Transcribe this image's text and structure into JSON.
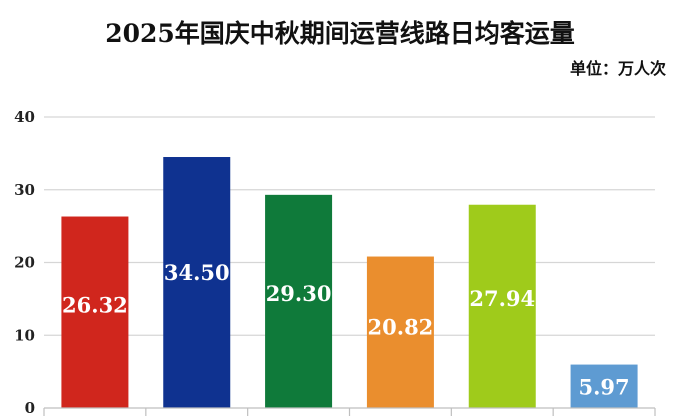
{
  "chart_data": {
    "type": "bar",
    "title": "2025年国庆中秋期间运营线路日均客运量",
    "unit_label": "单位：万人次",
    "xlabel": "",
    "ylabel": "",
    "ylim": [
      0,
      40
    ],
    "yticks": [
      0,
      10,
      20,
      30,
      40
    ],
    "grid": true,
    "categories": [
      "",
      "",
      "",
      "",
      "",
      ""
    ],
    "values": [
      26.32,
      34.5,
      29.3,
      20.82,
      27.94,
      5.97
    ],
    "labels": [
      "26.32",
      "34.50",
      "29.30",
      "20.82",
      "27.94",
      "5.97"
    ],
    "colors": [
      "#d0261d",
      "#0f3290",
      "#0f7a3a",
      "#ea8e2e",
      "#9fcb1b",
      "#5e9bd2"
    ]
  }
}
